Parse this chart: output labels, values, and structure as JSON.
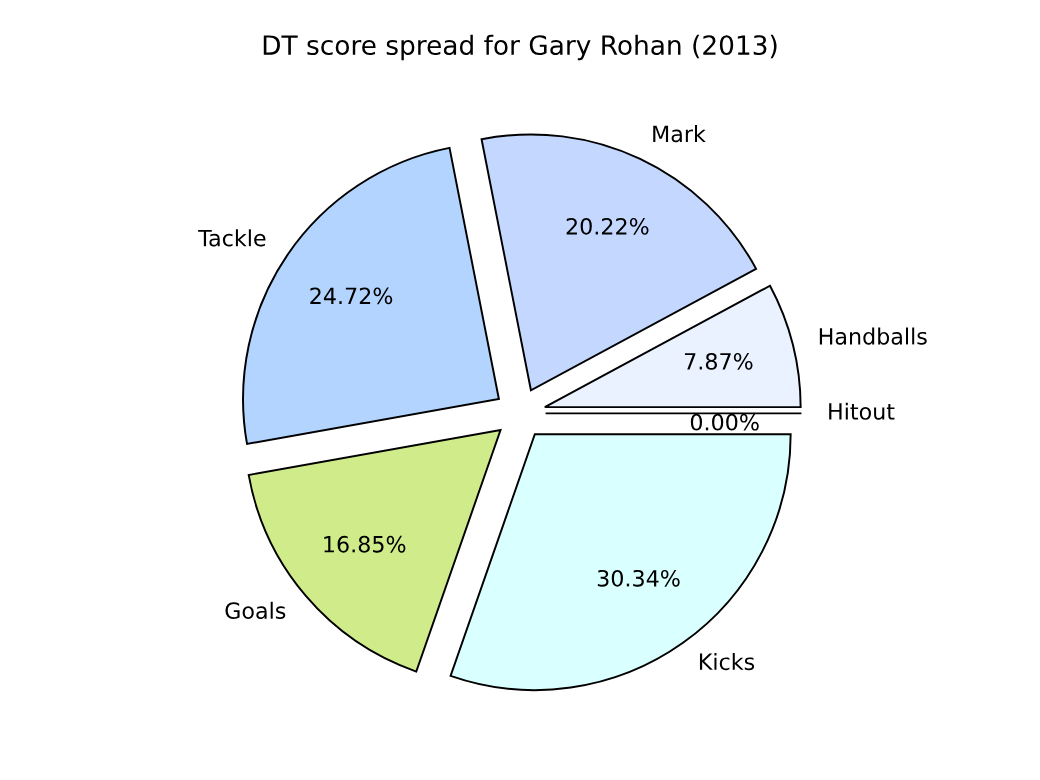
{
  "chart_data": {
    "type": "pie",
    "title": "DT score spread for Gary Rohan (2013)",
    "categories": [
      "Hitout",
      "Handballs",
      "Mark",
      "Tackle",
      "Goals",
      "Kicks"
    ],
    "values": [
      0.0,
      7.87,
      20.22,
      24.72,
      16.85,
      30.34
    ],
    "colors": [
      "#f0f0ff",
      "#eaf2ff",
      "#c4d8ff",
      "#b3d4ff",
      "#d0ec8a",
      "#d9ffff"
    ],
    "value_labels": [
      "0.00%",
      "7.87%",
      "20.22%",
      "24.72%",
      "16.85%",
      "30.34%"
    ]
  }
}
